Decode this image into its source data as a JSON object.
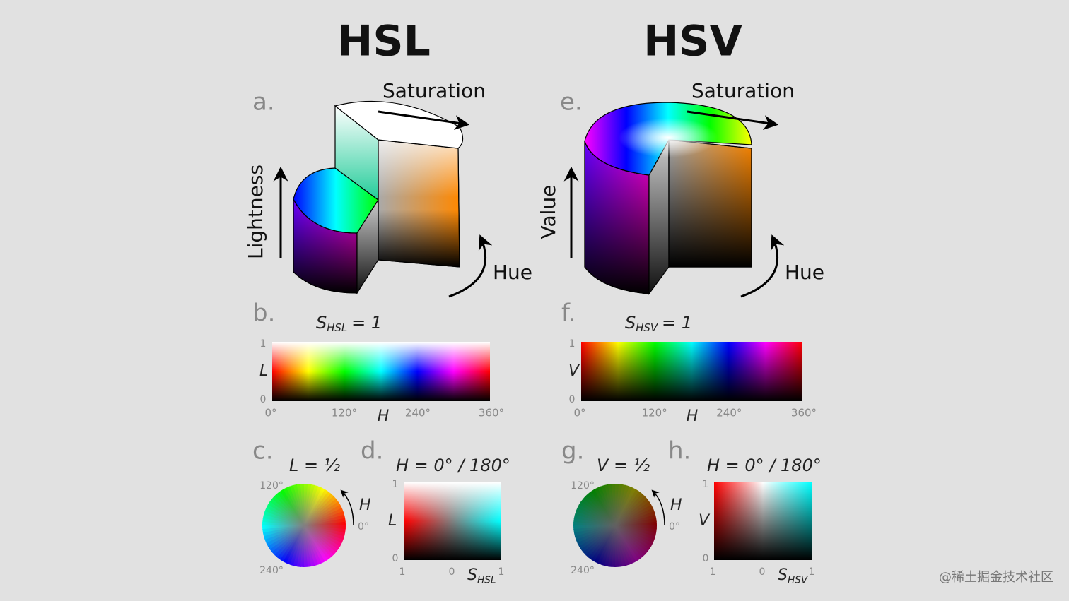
{
  "columns": [
    {
      "title": "HSL",
      "a": {
        "label": "a.",
        "top_axis": "Saturation",
        "vertical_axis": "Lightness",
        "rotation": "Hue"
      },
      "b": {
        "label": "b.",
        "condition": {
          "symbol": "S",
          "subscript": "HSL",
          "rest": "= 1"
        },
        "y_axis": {
          "top": "1",
          "name": "L",
          "bottom": "0"
        },
        "x_axis": {
          "ticks": [
            "0°",
            "120°",
            "240°",
            "360°"
          ],
          "name": "H"
        }
      },
      "c": {
        "label": "c.",
        "condition": "L = ½",
        "top": "120°",
        "arrow": "H",
        "right": "0°",
        "bottom": "240°"
      },
      "d": {
        "label": "d.",
        "condition": "H = 0° / 180°",
        "y_axis": {
          "top": "1",
          "name": "L",
          "bottom": "0"
        },
        "x_axis": {
          "left": "1",
          "middle": "0",
          "name": {
            "symbol": "S",
            "subscript": "HSL"
          },
          "right": "1"
        }
      }
    },
    {
      "title": "HSV",
      "a": {
        "label": "e.",
        "top_axis": "Saturation",
        "vertical_axis": "Value",
        "rotation": "Hue"
      },
      "b": {
        "label": "f.",
        "condition": {
          "symbol": "S",
          "subscript": "HSV",
          "rest": "= 1"
        },
        "y_axis": {
          "top": "1",
          "name": "V",
          "bottom": "0"
        },
        "x_axis": {
          "ticks": [
            "0°",
            "120°",
            "240°",
            "360°"
          ],
          "name": "H"
        }
      },
      "c": {
        "label": "g.",
        "condition": "V = ½",
        "top": "120°",
        "arrow": "H",
        "right": "0°",
        "bottom": "240°"
      },
      "d": {
        "label": "h.",
        "condition": "H = 0° / 180°",
        "y_axis": {
          "top": "1",
          "name": "V",
          "bottom": "0"
        },
        "x_axis": {
          "left": "1",
          "middle": "0",
          "name": {
            "symbol": "S",
            "subscript": "HSV"
          },
          "right": "1"
        }
      }
    }
  ],
  "watermark": "@稀土掘金技术社区"
}
